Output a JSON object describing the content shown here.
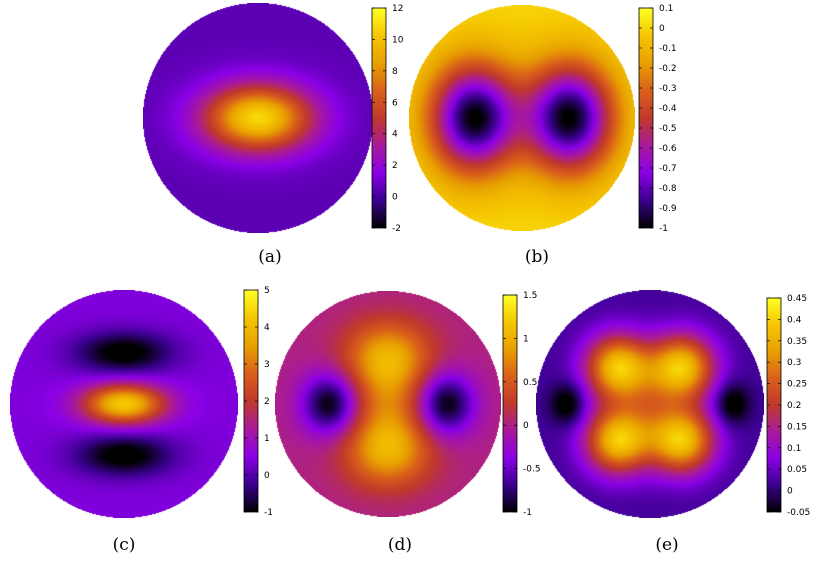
{
  "colors": {
    "colormap_gnuplot_default": [
      "#000000",
      "#3a008e",
      "#8a00e6",
      "#a81a9a",
      "#c0392b",
      "#d9601a",
      "#e8a000",
      "#f5c600",
      "#ffff26"
    ]
  },
  "chart_data": [
    {
      "type": "heatmap",
      "caption": "(a)",
      "domain": "disk",
      "colorbar": {
        "min": -2,
        "max": 12,
        "ticks": [
          "12",
          "10",
          "8",
          "6",
          "4",
          "2",
          "0",
          "-2"
        ],
        "tick_values": [
          12,
          10,
          8,
          6,
          4,
          2,
          0,
          -2
        ]
      },
      "field": {
        "background": 0.5,
        "features": [
          {
            "kind": "peak",
            "x": 0.0,
            "y": 0.0,
            "sx": 0.33,
            "sy": 0.2,
            "value": 10.8
          }
        ]
      }
    },
    {
      "type": "heatmap",
      "caption": "(b)",
      "domain": "disk",
      "colorbar": {
        "min": -1,
        "max": 0.1,
        "ticks": [
          "0.1",
          "0",
          "-0.1",
          "-0.2",
          "-0.3",
          "-0.4",
          "-0.5",
          "-0.6",
          "-0.7",
          "-0.8",
          "-0.9",
          "-1"
        ],
        "tick_values": [
          0.1,
          0,
          -0.1,
          -0.2,
          -0.3,
          -0.4,
          -0.5,
          -0.6,
          -0.7,
          -0.8,
          -0.9,
          -1
        ]
      },
      "field": {
        "background": 0.0,
        "features": [
          {
            "kind": "trough",
            "x": -0.42,
            "y": 0.0,
            "sx": 0.27,
            "sy": 0.33,
            "value": -1.0
          },
          {
            "kind": "trough",
            "x": 0.42,
            "y": 0.0,
            "sx": 0.27,
            "sy": 0.33,
            "value": -1.0
          }
        ]
      }
    },
    {
      "type": "heatmap",
      "caption": "(c)",
      "domain": "disk",
      "colorbar": {
        "min": -1,
        "max": 5,
        "ticks": [
          "5",
          "4",
          "3",
          "2",
          "1",
          "0",
          "-1"
        ],
        "tick_values": [
          5,
          4,
          3,
          2,
          1,
          0,
          -1
        ]
      },
      "field": {
        "background": 0.4,
        "features": [
          {
            "kind": "peak",
            "x": 0.0,
            "y": 0.0,
            "sx": 0.25,
            "sy": 0.12,
            "value": 4.3
          },
          {
            "kind": "trough",
            "x": 0.0,
            "y": 0.45,
            "sx": 0.3,
            "sy": 0.13,
            "value": -1.2
          },
          {
            "kind": "trough",
            "x": 0.0,
            "y": -0.45,
            "sx": 0.3,
            "sy": 0.13,
            "value": -1.2
          }
        ]
      }
    },
    {
      "type": "heatmap",
      "caption": "(d)",
      "domain": "disk",
      "colorbar": {
        "min": -1,
        "max": 1.5,
        "ticks": [
          "1.5",
          "1",
          "0.5",
          "0",
          "-0.5",
          "-1"
        ],
        "tick_values": [
          1.5,
          1,
          0.5,
          0,
          -0.5,
          -1
        ]
      },
      "field": {
        "background": 0.0,
        "features": [
          {
            "kind": "peak",
            "x": 0.0,
            "y": 0.42,
            "sx": 0.27,
            "sy": 0.22,
            "value": 0.9
          },
          {
            "kind": "peak",
            "x": 0.0,
            "y": -0.42,
            "sx": 0.27,
            "sy": 0.22,
            "value": 0.9
          },
          {
            "kind": "peak",
            "x": 0.0,
            "y": 0.0,
            "sx": 0.2,
            "sy": 0.3,
            "value": 0.5
          },
          {
            "kind": "trough",
            "x": -0.52,
            "y": 0.0,
            "sx": 0.17,
            "sy": 0.19,
            "value": -1.0
          },
          {
            "kind": "trough",
            "x": 0.52,
            "y": 0.0,
            "sx": 0.17,
            "sy": 0.19,
            "value": -1.0
          }
        ]
      }
    },
    {
      "type": "heatmap",
      "caption": "(e)",
      "domain": "disk",
      "colorbar": {
        "min": -0.05,
        "max": 0.45,
        "ticks": [
          "0.45",
          "0.4",
          "0.35",
          "0.3",
          "0.25",
          "0.2",
          "0.15",
          "0.1",
          "0.05",
          "0",
          "-0.05"
        ],
        "tick_values": [
          0.45,
          0.4,
          0.35,
          0.3,
          0.25,
          0.2,
          0.15,
          0.1,
          0.05,
          0,
          -0.05
        ]
      },
      "field": {
        "background": 0.02,
        "features": [
          {
            "kind": "peak",
            "x": -0.28,
            "y": 0.32,
            "sx": 0.2,
            "sy": 0.2,
            "value": 0.38
          },
          {
            "kind": "peak",
            "x": 0.28,
            "y": 0.32,
            "sx": 0.2,
            "sy": 0.2,
            "value": 0.38
          },
          {
            "kind": "peak",
            "x": -0.28,
            "y": -0.32,
            "sx": 0.2,
            "sy": 0.2,
            "value": 0.38
          },
          {
            "kind": "peak",
            "x": 0.28,
            "y": -0.32,
            "sx": 0.2,
            "sy": 0.2,
            "value": 0.38
          },
          {
            "kind": "peak",
            "x": 0.0,
            "y": 0.0,
            "sx": 0.2,
            "sy": 0.25,
            "value": 0.1
          },
          {
            "kind": "trough",
            "x": -0.72,
            "y": 0.0,
            "sx": 0.11,
            "sy": 0.13,
            "value": -0.08
          },
          {
            "kind": "trough",
            "x": 0.72,
            "y": 0.0,
            "sx": 0.11,
            "sy": 0.13,
            "value": -0.08
          }
        ]
      }
    }
  ]
}
